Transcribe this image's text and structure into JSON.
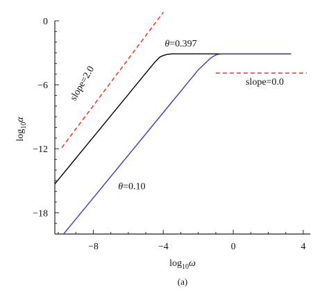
{
  "chart_data": {
    "type": "line",
    "title": "",
    "caption": "(a)",
    "xlabel": {
      "base": "log",
      "sub": "10",
      "var": "ω"
    },
    "ylabel": {
      "base": "log",
      "sub": "10",
      "var": "α"
    },
    "xlim": [
      -10.2,
      4.4
    ],
    "ylim": [
      -20,
      0
    ],
    "x_ticks": [
      -8,
      -4,
      0,
      4
    ],
    "y_ticks": [
      0,
      -6,
      -12,
      -18
    ],
    "grid": false,
    "series": [
      {
        "label": "θ=0.397",
        "color": "#000000",
        "x": [
          -10.2,
          -9.0,
          -8.0,
          -7.0,
          -6.0,
          -5.0,
          -4.5,
          -4.2,
          -4.0,
          -3.8,
          -3.5,
          -3.0,
          -2.0,
          0.0,
          2.0,
          3.3
        ],
        "y": [
          -15.3,
          -12.9,
          -10.9,
          -8.9,
          -6.9,
          -4.9,
          -3.9,
          -3.4,
          -3.25,
          -3.15,
          -3.1,
          -3.1,
          -3.1,
          -3.1,
          -3.1,
          -3.1
        ]
      },
      {
        "label": "θ=0.10",
        "color": "#3b3bb0",
        "x": [
          -9.7,
          -8.0,
          -6.0,
          -4.0,
          -2.0,
          -1.3,
          -1.0,
          -0.8,
          -0.6,
          -0.3,
          0.0,
          1.0,
          2.0,
          3.3
        ],
        "y": [
          -20.0,
          -16.6,
          -12.6,
          -8.6,
          -4.6,
          -3.5,
          -3.2,
          -3.12,
          -3.1,
          -3.1,
          -3.1,
          -3.1,
          -3.1,
          -3.1
        ]
      }
    ],
    "guides": [
      {
        "label": "slope=2.0",
        "color": "#e8341c",
        "dash": true,
        "x": [
          -9.8,
          -4.0
        ],
        "y": [
          -11.9,
          0.8
        ]
      },
      {
        "label": "slope=0.0",
        "color": "#e8341c",
        "dash": true,
        "x": [
          -1.0,
          4.2
        ],
        "y": [
          -4.9,
          -4.9
        ]
      }
    ],
    "annotations": [
      {
        "text": "slope=2.0",
        "x": -8.5,
        "y": -6.0,
        "rotate": -60,
        "italic_var": false
      },
      {
        "text": "θ=0.397",
        "x": -3.0,
        "y": -2.4,
        "rotate": 0,
        "italic_var": true
      },
      {
        "text": "slope=0.0",
        "x": 1.8,
        "y": -6.0,
        "rotate": 0,
        "italic_var": false
      },
      {
        "text": "θ=0.10",
        "x": -5.8,
        "y": -15.8,
        "rotate": 0,
        "italic_var": true
      }
    ]
  }
}
